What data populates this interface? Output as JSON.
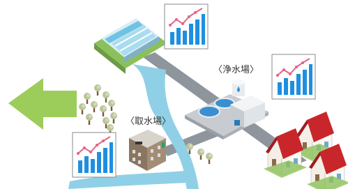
{
  "labels": {
    "purification_plant": "〈浄水場〉",
    "intake_station": "〈取水場〉"
  }
}
